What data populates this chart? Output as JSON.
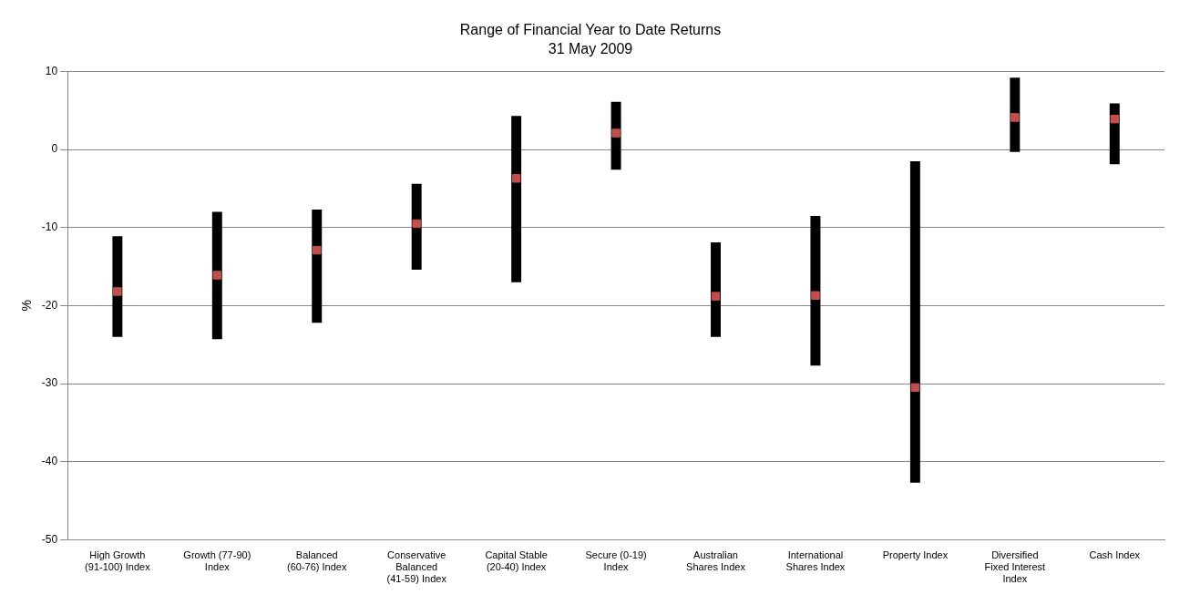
{
  "chart_data": {
    "type": "bar",
    "title": "Range of Financial Year to Date Returns",
    "subtitle": "31 May 2009",
    "ylabel": "%",
    "categories": [
      "High Growth (91-100) Index",
      "Growth (77-90) Index",
      "Balanced (60-76) Index",
      "Conservative Balanced (41-59) Index",
      "Capital Stable (20-40) Index",
      "Secure (0-19) Index",
      "Australian Shares Index",
      "International Shares Index",
      "Property Index",
      "Diversified Fixed Interest Index",
      "Cash Index"
    ],
    "series": [
      {
        "color": "#000000",
        "base": [
          -24,
          -24.3,
          -22.2,
          -15.4,
          -17,
          -2.6,
          -24,
          -27.7,
          -42.7,
          -0.3,
          -1.9
        ],
        "values": [
          12.9,
          16.3,
          14.5,
          11,
          21.3,
          8.7,
          12.1,
          19.2,
          41.2,
          9.5,
          7.8
        ]
      },
      {
        "type": "scatter",
        "color": "#c0504d",
        "values": [
          -18.2,
          -16.1,
          -12.9,
          -9.5,
          -3.7,
          2.1,
          -18.8,
          -18.7,
          -30.5,
          4.1,
          3.9
        ]
      }
    ],
    "ylim": [
      -50,
      10
    ],
    "yticks": [
      -50,
      -40,
      -30,
      -20,
      -10,
      0,
      10
    ],
    "grid": "y",
    "legend": false,
    "marker": "square"
  }
}
